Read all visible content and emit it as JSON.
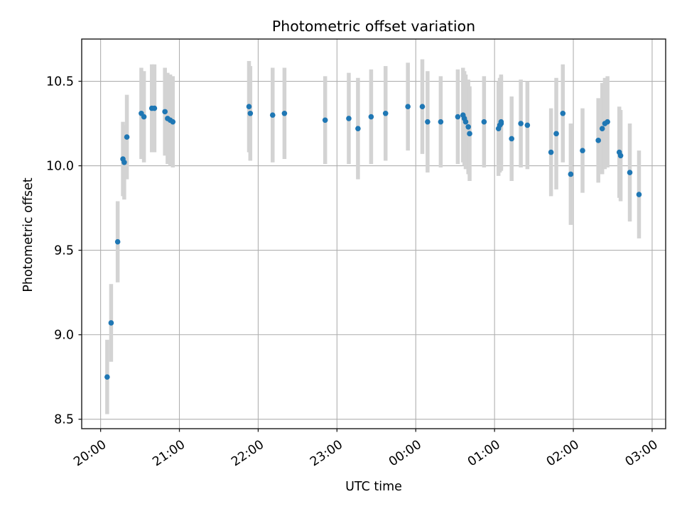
{
  "colors": {
    "point": "#1f77b4",
    "error_bar": "#d3d3d3",
    "grid": "#b0b0b0",
    "spine": "#1a1a1a",
    "background": "#ffffff"
  },
  "chart_data": {
    "type": "scatter",
    "title": "Photometric offset variation",
    "xlabel": "UTC time",
    "ylabel": "Photometric offset",
    "grid": true,
    "legend": "none",
    "x_tick_labels": [
      "20:00",
      "21:00",
      "22:00",
      "23:00",
      "00:00",
      "01:00",
      "02:00",
      "03:00"
    ],
    "x_tick_minutes": [
      0,
      60,
      120,
      180,
      240,
      300,
      360,
      420
    ],
    "xlim_minutes": [
      -14.4,
      430.3
    ],
    "y_tick_labels": [
      "8.5",
      "9.0",
      "9.5",
      "10.0",
      "10.5"
    ],
    "y_ticks": [
      8.5,
      9.0,
      9.5,
      10.0,
      10.5
    ],
    "ylim": [
      8.444,
      10.75
    ],
    "points": [
      {
        "t": "20:05",
        "v": 8.75,
        "e": 0.22
      },
      {
        "t": "20:08",
        "v": 9.07,
        "e": 0.23
      },
      {
        "t": "20:13",
        "v": 9.55,
        "e": 0.24
      },
      {
        "t": "20:17",
        "v": 10.04,
        "e": 0.22
      },
      {
        "t": "20:18",
        "v": 10.02,
        "e": 0.22
      },
      {
        "t": "20:20",
        "v": 10.17,
        "e": 0.25
      },
      {
        "t": "20:31",
        "v": 10.31,
        "e": 0.27
      },
      {
        "t": "20:33",
        "v": 10.29,
        "e": 0.27
      },
      {
        "t": "20:39",
        "v": 10.34,
        "e": 0.26
      },
      {
        "t": "20:41",
        "v": 10.34,
        "e": 0.26
      },
      {
        "t": "20:49",
        "v": 10.32,
        "e": 0.26
      },
      {
        "t": "20:51",
        "v": 10.28,
        "e": 0.27
      },
      {
        "t": "20:53",
        "v": 10.27,
        "e": 0.27
      },
      {
        "t": "20:55",
        "v": 10.26,
        "e": 0.27
      },
      {
        "t": "21:53",
        "v": 10.35,
        "e": 0.27
      },
      {
        "t": "21:54",
        "v": 10.31,
        "e": 0.28
      },
      {
        "t": "22:11",
        "v": 10.3,
        "e": 0.28
      },
      {
        "t": "22:20",
        "v": 10.31,
        "e": 0.27
      },
      {
        "t": "22:51",
        "v": 10.27,
        "e": 0.26
      },
      {
        "t": "23:09",
        "v": 10.28,
        "e": 0.27
      },
      {
        "t": "23:16",
        "v": 10.22,
        "e": 0.3
      },
      {
        "t": "23:26",
        "v": 10.29,
        "e": 0.28
      },
      {
        "t": "23:37",
        "v": 10.31,
        "e": 0.28
      },
      {
        "t": "23:54",
        "v": 10.35,
        "e": 0.26
      },
      {
        "t": "00:05",
        "v": 10.35,
        "e": 0.28
      },
      {
        "t": "00:09",
        "v": 10.26,
        "e": 0.3
      },
      {
        "t": "00:19",
        "v": 10.26,
        "e": 0.27
      },
      {
        "t": "00:32",
        "v": 10.29,
        "e": 0.28
      },
      {
        "t": "00:36",
        "v": 10.3,
        "e": 0.28
      },
      {
        "t": "00:37",
        "v": 10.28,
        "e": 0.28
      },
      {
        "t": "00:38",
        "v": 10.26,
        "e": 0.28
      },
      {
        "t": "00:40",
        "v": 10.23,
        "e": 0.28
      },
      {
        "t": "00:41",
        "v": 10.19,
        "e": 0.28
      },
      {
        "t": "00:52",
        "v": 10.26,
        "e": 0.27
      },
      {
        "t": "01:03",
        "v": 10.22,
        "e": 0.28
      },
      {
        "t": "01:04",
        "v": 10.24,
        "e": 0.28
      },
      {
        "t": "01:05",
        "v": 10.25,
        "e": 0.28
      },
      {
        "t": "01:05",
        "v": 10.26,
        "e": 0.28
      },
      {
        "t": "01:13",
        "v": 10.16,
        "e": 0.25
      },
      {
        "t": "01:20",
        "v": 10.25,
        "e": 0.26
      },
      {
        "t": "01:25",
        "v": 10.24,
        "e": 0.26
      },
      {
        "t": "01:43",
        "v": 10.08,
        "e": 0.26
      },
      {
        "t": "01:47",
        "v": 10.19,
        "e": 0.33
      },
      {
        "t": "01:52",
        "v": 10.31,
        "e": 0.29
      },
      {
        "t": "01:58",
        "v": 9.95,
        "e": 0.3
      },
      {
        "t": "02:07",
        "v": 10.09,
        "e": 0.25
      },
      {
        "t": "02:19",
        "v": 10.15,
        "e": 0.25
      },
      {
        "t": "02:22",
        "v": 10.22,
        "e": 0.27
      },
      {
        "t": "02:24",
        "v": 10.25,
        "e": 0.27
      },
      {
        "t": "02:26",
        "v": 10.26,
        "e": 0.27
      },
      {
        "t": "02:35",
        "v": 10.08,
        "e": 0.27
      },
      {
        "t": "02:36",
        "v": 10.06,
        "e": 0.27
      },
      {
        "t": "02:43",
        "v": 9.96,
        "e": 0.29
      },
      {
        "t": "02:50",
        "v": 9.83,
        "e": 0.26
      }
    ]
  }
}
